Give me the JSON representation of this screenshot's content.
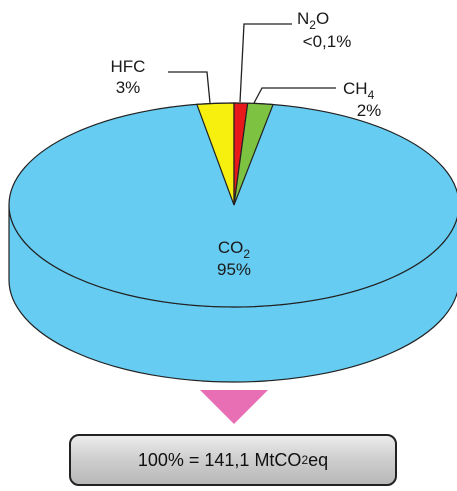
{
  "chart_data": {
    "type": "pie",
    "title": "",
    "slices": [
      {
        "label": "CO",
        "label_sub": "2",
        "value_label": "95%",
        "value": 95,
        "color": "#66ccf2"
      },
      {
        "label": "HFC",
        "label_sub": "",
        "value_label": "3%",
        "value": 3,
        "color": "#f7ef0e"
      },
      {
        "label": "N",
        "label_sub": "2",
        "label_tail": "O",
        "value_label": "<0,1%",
        "value": 0.1,
        "color": "#e8191b"
      },
      {
        "label": "CH",
        "label_sub": "4",
        "value_label": "2%",
        "value": 2,
        "color": "#7ec242"
      }
    ],
    "style": "3d-pie"
  },
  "arrow_color": "#e86fb3",
  "total": {
    "prefix": "100% = 141,1 MtCO",
    "sub": "2",
    "suffix": "eq"
  }
}
